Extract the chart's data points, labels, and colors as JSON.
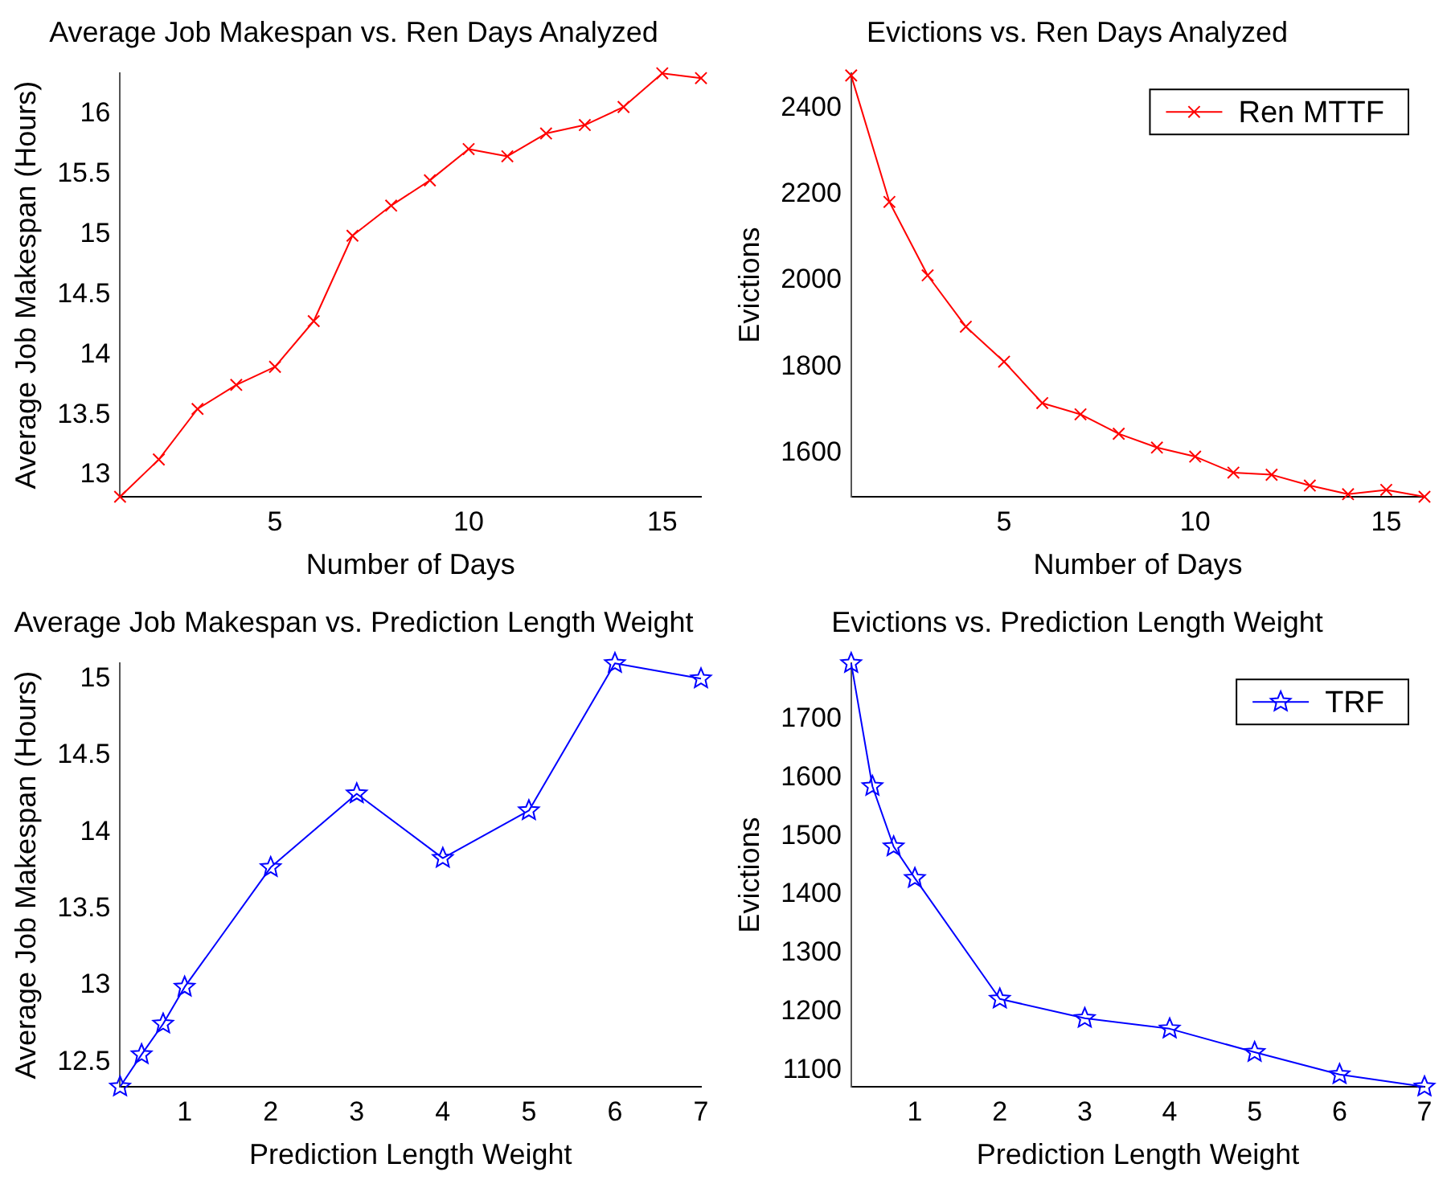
{
  "chart_data": [
    {
      "type": "line",
      "title": "Average Job Makespan vs. Ren Days Analyzed",
      "xlabel": "Number of Days",
      "ylabel": "Average Job Makespan (Hours)",
      "marker": "cross",
      "legend": false,
      "grid": false,
      "series": [
        {
          "color": "#ff0000",
          "x": [
            1,
            2,
            3,
            4,
            5,
            6,
            7,
            8,
            9,
            10,
            11,
            12,
            13,
            14,
            15,
            16
          ],
          "values": [
            12.82,
            13.13,
            13.55,
            13.75,
            13.9,
            14.28,
            14.99,
            15.24,
            15.45,
            15.71,
            15.65,
            15.84,
            15.91,
            16.06,
            16.34,
            16.3
          ]
        }
      ],
      "xlim": [
        1,
        16
      ],
      "xticks": [
        5,
        10,
        15
      ],
      "ylim": [
        12.82,
        16.34
      ],
      "yticks": [
        13,
        13.5,
        14,
        14.5,
        15,
        15.5,
        16
      ]
    },
    {
      "type": "line",
      "title": "Evictions vs. Ren Days Analyzed",
      "xlabel": "Number of Days",
      "ylabel": "Evictions",
      "marker": "cross",
      "legend": "top right",
      "grid": false,
      "series": [
        {
          "name": "Ren MTTF",
          "color": "#ff0000",
          "x": [
            1,
            2,
            3,
            4,
            5,
            6,
            7,
            8,
            9,
            10,
            11,
            12,
            13,
            14,
            15,
            16
          ],
          "values": [
            2475,
            2182,
            2012,
            1893,
            1812,
            1716,
            1690,
            1645,
            1613,
            1592,
            1555,
            1550,
            1525,
            1505,
            1515,
            1499
          ]
        }
      ],
      "xlim": [
        1,
        16
      ],
      "xticks": [
        5,
        10,
        15
      ],
      "ylim": [
        1499,
        2480
      ],
      "yticks": [
        1600,
        1800,
        2000,
        2200,
        2400
      ]
    },
    {
      "type": "line",
      "title": "Average Job Makespan vs. Prediction Length Weight",
      "xlabel": "Prediction Length Weight",
      "ylabel": "Average Job Makespan (Hours)",
      "marker": "star",
      "legend": false,
      "grid": false,
      "series": [
        {
          "color": "#0000ff",
          "x": [
            0.25,
            0.5,
            0.75,
            1,
            2,
            3,
            4,
            5,
            6,
            7
          ],
          "values": [
            12.34,
            12.55,
            12.75,
            12.99,
            13.77,
            14.25,
            13.83,
            14.14,
            15.1,
            15.0
          ]
        }
      ],
      "xlim": [
        0.25,
        7
      ],
      "xticks": [
        1,
        2,
        3,
        4,
        5,
        6,
        7
      ],
      "ylim": [
        12.34,
        15.1
      ],
      "yticks": [
        12.5,
        13,
        13.5,
        14,
        14.5,
        15
      ]
    },
    {
      "type": "line",
      "title": "Evictions vs. Prediction Length Weight",
      "xlabel": "Prediction Length Weight",
      "ylabel": "Evictions",
      "marker": "star",
      "legend": "top right",
      "grid": false,
      "series": [
        {
          "name": "TRF",
          "color": "#0000ff",
          "x": [
            0.25,
            0.5,
            0.75,
            1,
            2,
            3,
            4,
            5,
            6,
            7
          ],
          "values": [
            1795,
            1585,
            1482,
            1428,
            1222,
            1189,
            1171,
            1131,
            1093,
            1072
          ]
        }
      ],
      "xlim": [
        0.25,
        7
      ],
      "xticks": [
        1,
        2,
        3,
        4,
        5,
        6,
        7
      ],
      "ylim": [
        1072,
        1795
      ],
      "yticks": [
        1100,
        1200,
        1300,
        1400,
        1500,
        1600,
        1700
      ]
    }
  ]
}
